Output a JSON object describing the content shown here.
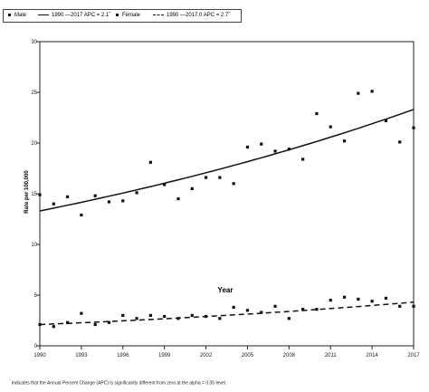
{
  "legend": {
    "male_label": "Male",
    "male_line_label": "1990 —2017 APC = 2.1ˆ",
    "female_label": "Female",
    "female_line_label": "1990 —2017.0 APC = 2.7ˆ"
  },
  "footnote": {
    "marker": "ˆ",
    "text": "Indicates that the Annual Percent Change (APC) is significantly different from zero at the alpha = 0.05 level."
  },
  "chart_data": {
    "type": "scatter",
    "xlabel": "Year",
    "ylabel": "Rate per 100,000",
    "xlim": [
      1990,
      2017
    ],
    "ylim": [
      0,
      30
    ],
    "x_ticks": [
      1990,
      1993,
      1996,
      1999,
      2002,
      2005,
      2008,
      2011,
      2014,
      2017
    ],
    "y_ticks": [
      0,
      5,
      10,
      15,
      20,
      25,
      30
    ],
    "grid": false,
    "legend_position": "top-left",
    "series": [
      {
        "name": "Male",
        "marker": "square",
        "x": [
          1990,
          1991,
          1992,
          1993,
          1994,
          1995,
          1996,
          1997,
          1998,
          1999,
          2000,
          2001,
          2002,
          2003,
          2004,
          2005,
          2006,
          2007,
          2008,
          2009,
          2010,
          2011,
          2012,
          2013,
          2014,
          2015,
          2016,
          2017
        ],
        "y": [
          14.9,
          14.0,
          14.7,
          12.9,
          14.8,
          14.2,
          14.3,
          15.1,
          18.1,
          15.9,
          14.5,
          15.5,
          16.6,
          16.6,
          16.0,
          19.6,
          19.9,
          19.2,
          19.4,
          18.4,
          22.9,
          21.6,
          20.2,
          24.9,
          25.1,
          22.2,
          20.1,
          21.5
        ]
      },
      {
        "name": "Female",
        "marker": "square",
        "x": [
          1990,
          1991,
          1992,
          1993,
          1994,
          1995,
          1996,
          1997,
          1998,
          1999,
          2000,
          2001,
          2002,
          2003,
          2004,
          2005,
          2006,
          2007,
          2008,
          2009,
          2010,
          2011,
          2012,
          2013,
          2014,
          2015,
          2016,
          2017
        ],
        "y": [
          2.1,
          1.9,
          2.3,
          3.2,
          2.1,
          2.3,
          3.0,
          2.7,
          3.0,
          2.9,
          2.7,
          3.0,
          2.9,
          2.7,
          3.8,
          3.5,
          3.3,
          3.9,
          2.7,
          3.6,
          3.6,
          4.5,
          4.8,
          4.6,
          4.4,
          4.7,
          3.9,
          3.9
        ]
      }
    ],
    "trends": [
      {
        "name": "1990 —2017 APC = 2.1ˆ",
        "style": "solid",
        "apc": 2.1,
        "x": [
          1990,
          2017
        ],
        "y_start": 13.3
      },
      {
        "name": "1990 —2017.0 APC = 2.7ˆ",
        "style": "dashed",
        "apc": 2.7,
        "x": [
          1990,
          2017
        ],
        "y_start": 2.1
      }
    ]
  }
}
